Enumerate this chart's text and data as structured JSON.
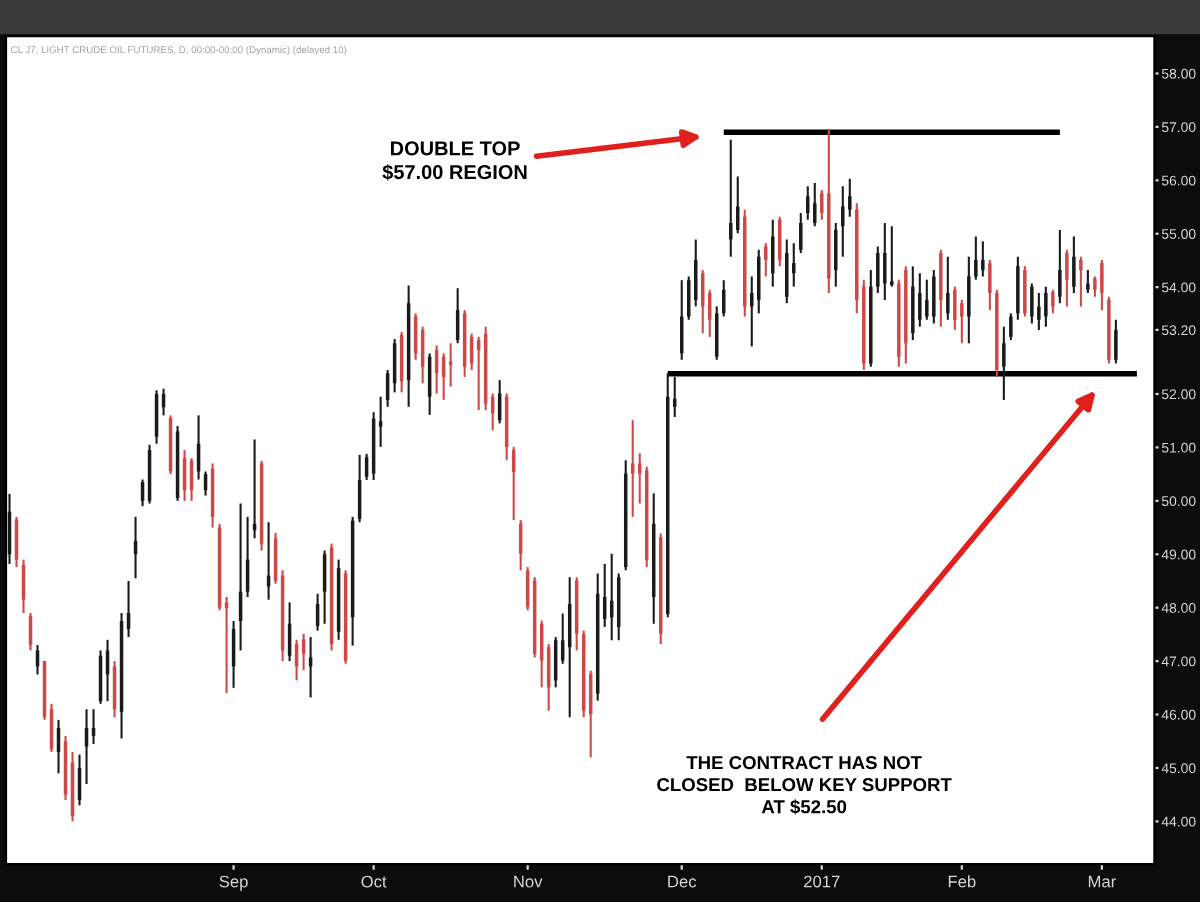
{
  "chart_data": {
    "type": "candlestick",
    "title": "CL J7, LIGHT CRUDE OIL FUTURES, D, 00:00-00:00 (Dynamic) (delayed 10)",
    "categories": [
      null,
      null,
      null,
      null,
      null,
      null,
      null,
      null,
      null,
      null,
      null,
      null,
      null,
      null,
      null,
      null,
      null,
      null,
      null,
      null,
      null,
      null,
      null,
      null,
      null,
      null,
      null,
      null,
      null,
      null,
      null,
      null,
      "Sep",
      null,
      null,
      null,
      null,
      null,
      null,
      null,
      null,
      null,
      null,
      null,
      null,
      null,
      null,
      null,
      null,
      null,
      null,
      null,
      "Oct",
      null,
      null,
      null,
      null,
      null,
      null,
      null,
      null,
      null,
      null,
      null,
      null,
      null,
      null,
      null,
      null,
      null,
      null,
      null,
      null,
      null,
      "Nov",
      null,
      null,
      null,
      null,
      null,
      null,
      null,
      null,
      null,
      null,
      null,
      null,
      null,
      null,
      null,
      null,
      null,
      null,
      null,
      null,
      null,
      "Dec",
      null,
      null,
      null,
      null,
      null,
      null,
      null,
      null,
      null,
      null,
      null,
      null,
      null,
      null,
      null,
      null,
      null,
      null,
      null,
      "2017",
      null,
      null,
      null,
      null,
      null,
      null,
      null,
      null,
      null,
      null,
      null,
      null,
      null,
      null,
      null,
      null,
      null,
      null,
      null,
      "Feb",
      null,
      null,
      null,
      null,
      null,
      null,
      null,
      null,
      null,
      null,
      null,
      null,
      null,
      null,
      null,
      null,
      null,
      null,
      null,
      "Mar",
      null,
      null,
      null,
      null,
      null,
      null,
      null
    ],
    "ohlc": [
      [
        49.0,
        50.13,
        48.82,
        49.8
      ],
      [
        49.65,
        49.7,
        48.76,
        48.9
      ],
      [
        48.8,
        48.9,
        47.9,
        48.15
      ],
      [
        47.85,
        47.9,
        47.2,
        47.3
      ],
      [
        46.9,
        47.3,
        46.75,
        47.2
      ],
      [
        47.0,
        47.0,
        45.9,
        45.95
      ],
      [
        46.1,
        46.2,
        45.3,
        45.35
      ],
      [
        45.3,
        45.9,
        44.9,
        45.75
      ],
      [
        45.5,
        45.6,
        44.4,
        44.5
      ],
      [
        45.1,
        45.3,
        44.0,
        44.1
      ],
      [
        44.4,
        45.25,
        44.3,
        45.0
      ],
      [
        45.4,
        46.1,
        44.7,
        45.75
      ],
      [
        45.6,
        46.1,
        45.45,
        45.75
      ],
      [
        46.25,
        47.2,
        46.2,
        47.1
      ],
      [
        46.75,
        47.4,
        46.25,
        47.2
      ],
      [
        46.9,
        47.0,
        45.95,
        46.1
      ],
      [
        46.05,
        47.9,
        45.55,
        47.75
      ],
      [
        47.6,
        48.5,
        47.45,
        47.9
      ],
      [
        49.0,
        49.7,
        48.55,
        49.25
      ],
      [
        50.0,
        50.4,
        49.9,
        50.35
      ],
      [
        50.0,
        51.05,
        49.95,
        50.95
      ],
      [
        51.2,
        52.07,
        51.07,
        52.0
      ],
      [
        51.75,
        52.1,
        51.6,
        52.0
      ],
      [
        51.55,
        51.6,
        50.5,
        50.55
      ],
      [
        50.05,
        51.4,
        50.0,
        51.3
      ],
      [
        50.8,
        50.95,
        50.0,
        50.2
      ],
      [
        50.75,
        50.8,
        50.0,
        50.2
      ],
      [
        50.55,
        51.6,
        50.4,
        51.07
      ],
      [
        50.2,
        50.55,
        50.1,
        50.5
      ],
      [
        50.6,
        50.7,
        49.5,
        49.7
      ],
      [
        49.5,
        49.57,
        47.95,
        48.0
      ],
      [
        48.1,
        48.2,
        46.4,
        47.99
      ],
      [
        46.9,
        47.75,
        46.5,
        47.6
      ],
      [
        47.75,
        49.95,
        47.2,
        48.3
      ],
      [
        48.3,
        49.7,
        48.2,
        48.9
      ],
      [
        49.45,
        51.15,
        49.3,
        49.57
      ],
      [
        50.7,
        50.75,
        49.07,
        49.2
      ],
      [
        48.4,
        49.6,
        48.15,
        48.6
      ],
      [
        49.3,
        49.4,
        48.45,
        48.5
      ],
      [
        48.6,
        48.7,
        47.0,
        47.2
      ],
      [
        47.1,
        48.1,
        47.0,
        47.7
      ],
      [
        47.32,
        47.4,
        46.64,
        46.9
      ],
      [
        47.41,
        47.51,
        46.83,
        47.14
      ],
      [
        46.9,
        47.45,
        46.32,
        47.07
      ],
      [
        47.66,
        48.26,
        47.57,
        48.07
      ],
      [
        48.3,
        49.07,
        47.7,
        49.0
      ],
      [
        49.13,
        49.2,
        47.2,
        47.32
      ],
      [
        47.55,
        48.9,
        47.4,
        48.74
      ],
      [
        48.64,
        48.7,
        46.95,
        47.0
      ],
      [
        47.82,
        49.7,
        47.29,
        49.63
      ],
      [
        49.66,
        50.86,
        49.6,
        50.39
      ],
      [
        50.45,
        50.88,
        50.39,
        50.82
      ],
      [
        50.51,
        51.66,
        50.39,
        51.54
      ],
      [
        51.39,
        51.95,
        51.01,
        51.49
      ],
      [
        51.89,
        52.45,
        51.76,
        52.39
      ],
      [
        52.2,
        53.03,
        52.03,
        52.95
      ],
      [
        53.11,
        53.16,
        52.03,
        52.24
      ],
      [
        52.26,
        54.03,
        51.76,
        53.7
      ],
      [
        53.45,
        53.51,
        52.64,
        52.76
      ],
      [
        53.2,
        53.26,
        52.2,
        52.51
      ],
      [
        51.95,
        52.76,
        51.61,
        52.7
      ],
      [
        52.82,
        52.91,
        52.01,
        52.39
      ],
      [
        52.7,
        52.76,
        51.89,
        52.32
      ],
      [
        52.61,
        52.95,
        52.14,
        52.54
      ],
      [
        53.01,
        53.98,
        52.95,
        53.57
      ],
      [
        53.51,
        53.57,
        52.32,
        52.51
      ],
      [
        53.07,
        53.13,
        52.45,
        52.57
      ],
      [
        53.01,
        53.07,
        51.7,
        52.82
      ],
      [
        53.13,
        53.26,
        51.7,
        51.82
      ],
      [
        51.95,
        52.01,
        51.32,
        51.64
      ],
      [
        51.51,
        52.26,
        51.45,
        52.01
      ],
      [
        51.95,
        52.01,
        50.76,
        51.01
      ],
      [
        50.95,
        51.01,
        49.64,
        50.54
      ],
      [
        49.57,
        49.64,
        48.7,
        49.01
      ],
      [
        48.7,
        48.76,
        47.95,
        48.01
      ],
      [
        48.51,
        48.57,
        47.07,
        47.14
      ],
      [
        47.7,
        47.76,
        46.51,
        47.01
      ],
      [
        47.26,
        47.32,
        46.07,
        46.51
      ],
      [
        46.64,
        47.45,
        46.51,
        47.39
      ],
      [
        47.01,
        47.89,
        46.95,
        47.39
      ],
      [
        47.26,
        48.57,
        45.95,
        48.07
      ],
      [
        48.51,
        48.57,
        47.2,
        47.51
      ],
      [
        47.51,
        47.57,
        45.95,
        46.07
      ],
      [
        46.76,
        46.82,
        45.2,
        46.01
      ],
      [
        46.39,
        48.64,
        46.26,
        48.26
      ],
      [
        47.79,
        48.82,
        47.64,
        48.2
      ],
      [
        47.82,
        49.01,
        47.39,
        48.13
      ],
      [
        47.64,
        48.64,
        47.39,
        48.57
      ],
      [
        48.76,
        50.76,
        48.7,
        50.51
      ],
      [
        50.7,
        51.51,
        49.7,
        50.51
      ],
      [
        50.7,
        50.89,
        49.95,
        50.51
      ],
      [
        50.57,
        50.64,
        48.76,
        48.89
      ],
      [
        48.2,
        50.14,
        47.7,
        49.57
      ],
      [
        49.32,
        49.39,
        47.32,
        47.51
      ],
      [
        47.88,
        52.39,
        47.82,
        51.95
      ],
      [
        51.76,
        52.32,
        51.57,
        51.91
      ],
      [
        52.76,
        54.13,
        52.64,
        53.45
      ],
      [
        53.45,
        54.2,
        53.39,
        54.13
      ],
      [
        53.76,
        54.89,
        53.64,
        54.51
      ],
      [
        54.26,
        54.32,
        53.14,
        53.64
      ],
      [
        53.89,
        53.95,
        53.07,
        53.39
      ],
      [
        52.7,
        53.64,
        52.64,
        53.51
      ],
      [
        53.51,
        54.13,
        53.45,
        53.95
      ],
      [
        54.89,
        56.76,
        54.57,
        55.2
      ],
      [
        55.07,
        56.07,
        55.01,
        55.51
      ],
      [
        55.32,
        55.45,
        53.45,
        53.64
      ],
      [
        53.64,
        54.2,
        52.89,
        53.89
      ],
      [
        53.76,
        54.7,
        53.51,
        54.57
      ],
      [
        54.76,
        54.82,
        54.2,
        54.51
      ],
      [
        54.26,
        55.26,
        54.01,
        54.95
      ],
      [
        55.26,
        55.32,
        54.39,
        54.51
      ],
      [
        53.82,
        54.89,
        53.7,
        54.64
      ],
      [
        54.26,
        54.82,
        54.01,
        54.45
      ],
      [
        54.7,
        55.39,
        54.64,
        55.2
      ],
      [
        55.39,
        55.89,
        55.26,
        55.7
      ],
      [
        55.2,
        55.95,
        55.14,
        55.57
      ],
      [
        55.76,
        55.82,
        55.26,
        55.39
      ],
      [
        55.76,
        56.95,
        53.89,
        54.16
      ],
      [
        54.32,
        55.2,
        54.01,
        55.07
      ],
      [
        55.14,
        55.89,
        54.57,
        55.51
      ],
      [
        55.45,
        56.03,
        55.32,
        55.7
      ],
      [
        55.45,
        55.57,
        53.51,
        53.76
      ],
      [
        54.01,
        54.14,
        52.45,
        52.57
      ],
      [
        52.57,
        54.32,
        52.51,
        54.01
      ],
      [
        54.01,
        54.76,
        53.89,
        54.64
      ],
      [
        54.07,
        55.2,
        53.76,
        54.64
      ],
      [
        54.04,
        55.14,
        54.01,
        54.11
      ],
      [
        54.07,
        54.14,
        52.51,
        52.7
      ],
      [
        54.32,
        54.39,
        52.57,
        52.95
      ],
      [
        53.14,
        54.39,
        53.01,
        54.01
      ],
      [
        53.39,
        54.26,
        53.26,
        53.89
      ],
      [
        53.45,
        54.14,
        53.39,
        53.76
      ],
      [
        53.45,
        54.32,
        53.32,
        54.2
      ],
      [
        54.64,
        54.7,
        53.26,
        53.76
      ],
      [
        53.51,
        54.57,
        53.39,
        53.89
      ],
      [
        53.95,
        54.01,
        53.2,
        53.39
      ],
      [
        53.7,
        53.76,
        52.95,
        53.45
      ],
      [
        53.45,
        54.57,
        52.95,
        54.2
      ],
      [
        54.2,
        54.95,
        54.14,
        54.51
      ],
      [
        54.32,
        54.86,
        54.2,
        54.51
      ],
      [
        54.45,
        54.51,
        53.57,
        53.89
      ],
      [
        53.89,
        53.95,
        52.32,
        52.45
      ],
      [
        52.51,
        53.26,
        51.89,
        52.95
      ],
      [
        53.07,
        53.51,
        53.01,
        53.45
      ],
      [
        53.51,
        54.57,
        53.39,
        54.39
      ],
      [
        54.32,
        54.39,
        53.45,
        53.51
      ],
      [
        53.45,
        54.07,
        53.32,
        54.01
      ],
      [
        53.39,
        53.89,
        53.2,
        53.64
      ],
      [
        53.45,
        54.01,
        53.26,
        53.89
      ],
      [
        53.91,
        53.95,
        53.51,
        53.64
      ],
      [
        53.82,
        55.07,
        53.7,
        54.32
      ],
      [
        54.64,
        54.7,
        53.64,
        54.14
      ],
      [
        54.01,
        54.95,
        53.89,
        54.57
      ],
      [
        54.51,
        54.57,
        53.64,
        54.32
      ],
      [
        53.95,
        54.32,
        53.89,
        54.07
      ],
      [
        54.16,
        54.2,
        53.82,
        53.95
      ],
      [
        54.45,
        54.51,
        53.57,
        53.89
      ],
      [
        53.76,
        53.82,
        52.57,
        52.64
      ],
      [
        52.64,
        53.39,
        52.57,
        53.2
      ],
      null,
      null,
      null,
      null,
      null
    ],
    "colors": [
      "#1a1a1a",
      "#cf4848",
      "#cf4848",
      "#cf4848",
      "#1a1a1a",
      "#cf4848",
      "#cf4848",
      "#1a1a1a",
      "#cf4848",
      "#cf4848",
      "#1a1a1a",
      "#1a1a1a",
      "#1a1a1a",
      "#1a1a1a",
      "#1a1a1a",
      "#cf4848",
      "#1a1a1a",
      "#1a1a1a",
      "#1a1a1a",
      "#1a1a1a",
      "#1a1a1a",
      "#1a1a1a",
      "#1a1a1a",
      "#cf4848",
      "#1a1a1a",
      "#cf4848",
      "#cf4848",
      "#1a1a1a",
      "#1a1a1a",
      "#cf4848",
      "#cf4848",
      "#cf4848",
      "#1a1a1a",
      "#1a1a1a",
      "#1a1a1a",
      "#1a1a1a",
      "#cf4848",
      "#1a1a1a",
      "#cf4848",
      "#cf4848",
      "#1a1a1a",
      "#cf4848",
      "#cf4848",
      "#1a1a1a",
      "#1a1a1a",
      "#1a1a1a",
      "#cf4848",
      "#1a1a1a",
      "#cf4848",
      "#1a1a1a",
      "#1a1a1a",
      "#1a1a1a",
      "#1a1a1a",
      "#1a1a1a",
      "#1a1a1a",
      "#1a1a1a",
      "#cf4848",
      "#1a1a1a",
      "#cf4848",
      "#cf4848",
      "#1a1a1a",
      "#cf4848",
      "#cf4848",
      "#cf4848",
      "#1a1a1a",
      "#cf4848",
      "#cf4848",
      "#cf4848",
      "#cf4848",
      "#cf4848",
      "#1a1a1a",
      "#cf4848",
      "#cf4848",
      "#cf4848",
      "#cf4848",
      "#cf4848",
      "#cf4848",
      "#cf4848",
      "#1a1a1a",
      "#1a1a1a",
      "#1a1a1a",
      "#cf4848",
      "#cf4848",
      "#cf4848",
      "#1a1a1a",
      "#1a1a1a",
      "#1a1a1a",
      "#1a1a1a",
      "#1a1a1a",
      "#cf4848",
      "#cf4848",
      "#cf4848",
      "#1a1a1a",
      "#cf4848",
      "#1a1a1a",
      "#1a1a1a",
      "#1a1a1a",
      "#1a1a1a",
      "#1a1a1a",
      "#cf4848",
      "#cf4848",
      "#1a1a1a",
      "#1a1a1a",
      "#1a1a1a",
      "#1a1a1a",
      "#cf4848",
      "#1a1a1a",
      "#1a1a1a",
      "#cf4848",
      "#1a1a1a",
      "#cf4848",
      "#1a1a1a",
      "#1a1a1a",
      "#1a1a1a",
      "#1a1a1a",
      "#1a1a1a",
      "#cf4848",
      "#cf4848",
      "#1a1a1a",
      "#1a1a1a",
      "#1a1a1a",
      "#cf4848",
      "#cf4848",
      "#1a1a1a",
      "#1a1a1a",
      "#1a1a1a",
      "#1a1a1a",
      "#cf4848",
      "#cf4848",
      "#1a1a1a",
      "#1a1a1a",
      "#1a1a1a",
      "#1a1a1a",
      "#cf4848",
      "#1a1a1a",
      "#cf4848",
      "#cf4848",
      "#1a1a1a",
      "#1a1a1a",
      "#1a1a1a",
      "#cf4848",
      "#cf4848",
      "#1a1a1a",
      "#1a1a1a",
      "#1a1a1a",
      "#cf4848",
      "#1a1a1a",
      "#1a1a1a",
      "#1a1a1a",
      "#cf4848",
      "#1a1a1a",
      "#cf4848",
      "#1a1a1a",
      "#cf4848",
      "#1a1a1a",
      "#cf4848",
      "#cf4848",
      "#cf4848",
      "#1a1a1a",
      null,
      null,
      null,
      null,
      null
    ],
    "series": [
      {
        "type": "line",
        "color": "#000000",
        "values": [
          null,
          null,
          null,
          null,
          null,
          null,
          null,
          null,
          null,
          null,
          null,
          null,
          null,
          null,
          null,
          null,
          null,
          null,
          null,
          null,
          null,
          null,
          null,
          null,
          null,
          null,
          null,
          null,
          null,
          null,
          null,
          null,
          null,
          null,
          null,
          null,
          null,
          null,
          null,
          null,
          null,
          null,
          null,
          null,
          null,
          null,
          null,
          null,
          null,
          null,
          null,
          null,
          null,
          null,
          null,
          null,
          null,
          null,
          null,
          null,
          null,
          null,
          null,
          null,
          null,
          null,
          null,
          null,
          null,
          null,
          null,
          null,
          null,
          null,
          null,
          null,
          null,
          null,
          null,
          null,
          null,
          null,
          null,
          null,
          null,
          null,
          null,
          null,
          null,
          null,
          null,
          null,
          null,
          null,
          null,
          null,
          null,
          null,
          null,
          null,
          null,
          null,
          56.9,
          56.9,
          56.9,
          56.9,
          56.9,
          56.9,
          56.9,
          56.9,
          56.9,
          56.9,
          56.9,
          56.9,
          56.9,
          56.9,
          56.9,
          56.9,
          56.9,
          56.9,
          56.9,
          56.9,
          56.9,
          56.9,
          56.9,
          56.9,
          56.9,
          56.9,
          56.9,
          56.9,
          56.9,
          56.9,
          56.9,
          56.9,
          56.9,
          56.9,
          56.9,
          56.9,
          56.9,
          56.9,
          56.9,
          56.9,
          56.9,
          56.9,
          56.9,
          56.9,
          56.9,
          56.9,
          56.9,
          56.9,
          56.9,
          null,
          null,
          null,
          null,
          null,
          null,
          null,
          null,
          null,
          null,
          null,
          null,
          null
        ]
      },
      {
        "type": "line",
        "color": "#000000",
        "values": [
          null,
          null,
          null,
          null,
          null,
          null,
          null,
          null,
          null,
          null,
          null,
          null,
          null,
          null,
          null,
          null,
          null,
          null,
          null,
          null,
          null,
          null,
          null,
          null,
          null,
          null,
          null,
          null,
          null,
          null,
          null,
          null,
          null,
          null,
          null,
          null,
          null,
          null,
          null,
          null,
          null,
          null,
          null,
          null,
          null,
          null,
          null,
          null,
          null,
          null,
          null,
          null,
          null,
          null,
          null,
          null,
          null,
          null,
          null,
          null,
          null,
          null,
          null,
          null,
          null,
          null,
          null,
          null,
          null,
          null,
          null,
          null,
          null,
          null,
          null,
          null,
          null,
          null,
          null,
          null,
          null,
          null,
          null,
          null,
          null,
          null,
          null,
          null,
          null,
          null,
          null,
          null,
          null,
          null,
          52.38,
          52.38,
          52.38,
          52.38,
          52.38,
          52.38,
          52.38,
          52.38,
          52.38,
          52.38,
          52.38,
          52.38,
          52.38,
          52.38,
          52.38,
          52.38,
          52.38,
          52.38,
          52.38,
          52.38,
          52.38,
          52.38,
          52.38,
          52.38,
          52.38,
          52.38,
          52.38,
          52.38,
          52.38,
          52.38,
          52.38,
          52.38,
          52.38,
          52.38,
          52.38,
          52.38,
          52.38,
          52.38,
          52.38,
          52.38,
          52.38,
          52.38,
          52.38,
          52.38,
          52.38,
          52.38,
          52.38,
          52.38,
          52.38,
          52.38,
          52.38,
          52.38,
          52.38,
          52.38,
          52.38,
          52.38,
          52.38,
          52.38,
          52.38,
          52.38,
          52.38,
          52.38,
          52.38,
          52.38,
          52.38,
          52.38,
          52.38,
          52.38,
          null,
          null
        ]
      }
    ],
    "ylim": [
      43.2,
      58.7
    ],
    "yticks": [
      {
        "value": 44,
        "label": "44.00"
      },
      {
        "value": 45,
        "label": "45.00"
      },
      {
        "value": 46,
        "label": "46.00"
      },
      {
        "value": 47,
        "label": "47.00"
      },
      {
        "value": 48,
        "label": "48.00"
      },
      {
        "value": 49,
        "label": "49.00"
      },
      {
        "value": 50,
        "label": "50.00"
      },
      {
        "value": 51,
        "label": "51.00"
      },
      {
        "value": 52,
        "label": "52.00"
      },
      {
        "value": 53.2,
        "label": "53.20"
      },
      {
        "value": 54,
        "label": "54.00"
      },
      {
        "value": 55,
        "label": "55.00"
      },
      {
        "value": 56,
        "label": "56.00"
      },
      {
        "value": 57,
        "label": "57.00"
      },
      {
        "value": 58,
        "label": "58.00"
      }
    ],
    "annotations": [
      "DOUBLE TOP\n$57.00 REGION",
      "THE CONTRACT HAS NOT\nCLOSED  BELOW KEY SUPPORT\nAT $52.50"
    ]
  }
}
